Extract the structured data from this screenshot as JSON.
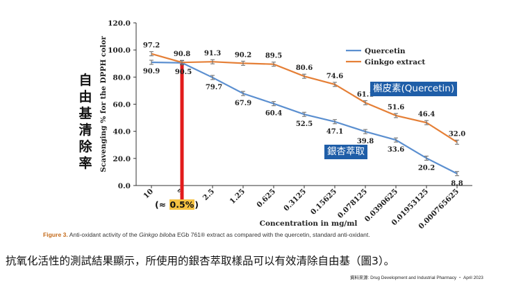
{
  "chart_data": {
    "type": "line",
    "title": "",
    "xlabel": "Concentration in mg/ml",
    "ylabel": "Scavenging % for the DPPH color",
    "categories": [
      "10",
      "5",
      "2.5",
      "1.25",
      "0.625",
      "0.3125",
      "0.15625",
      "0.078125",
      "0.0390625",
      "0.01953125",
      "0.000765625"
    ],
    "ylim": [
      0,
      120
    ],
    "yticks": [
      "0.0",
      "20.0",
      "40.0",
      "60.0",
      "80.0",
      "100.0",
      "120.0"
    ],
    "legend_position": "top-right",
    "series": [
      {
        "name": "Quercetin",
        "color": "#5b8fd0",
        "values": [
          90.9,
          90.5,
          79.7,
          67.9,
          60.4,
          52.5,
          47.1,
          39.8,
          33.6,
          20.2,
          8.8
        ],
        "labels": [
          "90.9",
          "90.5",
          "79.7",
          "67.9",
          "60.4",
          "52.5",
          "47.1",
          "39.8",
          "33.6",
          "20.2",
          "8.8"
        ]
      },
      {
        "name": "Ginkgo extract",
        "color": "#e57f36",
        "values": [
          97.2,
          90.8,
          91.3,
          90.2,
          89.5,
          80.6,
          74.6,
          61.1,
          51.6,
          46.4,
          32.0
        ],
        "labels": [
          "97.2",
          "90.8",
          "91.3",
          "90.2",
          "89.5",
          "80.6",
          "74.6",
          "61.1",
          "51.6",
          "46.4",
          "32.0"
        ]
      }
    ],
    "highlight": {
      "category": "5",
      "color": "#e21b1b"
    }
  },
  "annotations": {
    "side_label": "自由基清除率",
    "quercetin_badge": "槲皮素(Quercetin)",
    "ginkgo_badge": "銀杏萃取",
    "approx_prefix": "(≈ ",
    "approx_value": "0.5%",
    "approx_suffix": ")"
  },
  "caption": {
    "figure_label": "Figure 3.",
    "text_before": "Anti-oxidant activity of the ",
    "species": "Ginkgo biloba",
    "text_after": " EGb 761® extract as compared with the quercetin, standard anti-oxidant."
  },
  "summary": "抗氧化活性的測試結果顯示，所使用的銀杏萃取樣品可以有效清除自由基（圖3）。",
  "source": "資料來源: Drug Development and Industrial Pharmacy ・ April 2023"
}
